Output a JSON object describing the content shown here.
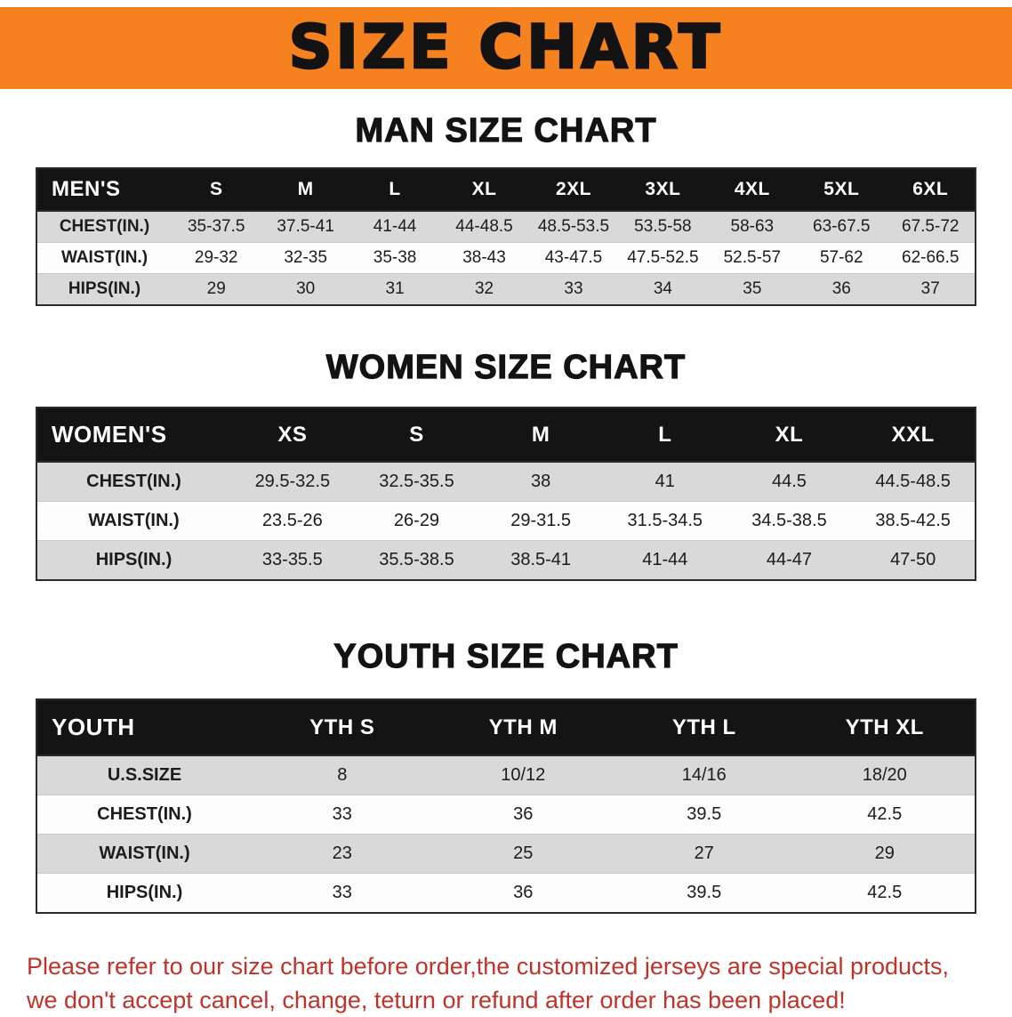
{
  "banner": {
    "title": "SIZE CHART",
    "bg_color": "#F5821F",
    "text_color": "#131313"
  },
  "chart_data": [
    {
      "type": "table",
      "title": "MAN SIZE CHART",
      "columns": [
        "MEN'S",
        "S",
        "M",
        "L",
        "XL",
        "2XL",
        "3XL",
        "4XL",
        "5XL",
        "6XL"
      ],
      "rows": [
        [
          "CHEST(IN.)",
          "35-37.5",
          "37.5-41",
          "41-44",
          "44-48.5",
          "48.5-53.5",
          "53.5-58",
          "58-63",
          "63-67.5",
          "67.5-72"
        ],
        [
          "WAIST(IN.)",
          "29-32",
          "32-35",
          "35-38",
          "38-43",
          "43-47.5",
          "47.5-52.5",
          "52.5-57",
          "57-62",
          "62-66.5"
        ],
        [
          "HIPS(IN.)",
          "29",
          "30",
          "31",
          "32",
          "33",
          "34",
          "35",
          "36",
          "37"
        ]
      ]
    },
    {
      "type": "table",
      "title": "WOMEN SIZE CHART",
      "columns": [
        "WOMEN'S",
        "XS",
        "S",
        "M",
        "L",
        "XL",
        "XXL"
      ],
      "rows": [
        [
          "CHEST(IN.)",
          "29.5-32.5",
          "32.5-35.5",
          "38",
          "41",
          "44.5",
          "44.5-48.5"
        ],
        [
          "WAIST(IN.)",
          "23.5-26",
          "26-29",
          "29-31.5",
          "31.5-34.5",
          "34.5-38.5",
          "38.5-42.5"
        ],
        [
          "HIPS(IN.)",
          "33-35.5",
          "35.5-38.5",
          "38.5-41",
          "41-44",
          "44-47",
          "47-50"
        ]
      ]
    },
    {
      "type": "table",
      "title": "YOUTH SIZE CHART",
      "columns": [
        "YOUTH",
        "YTH S",
        "YTH M",
        "YTH L",
        "YTH XL"
      ],
      "rows": [
        [
          "U.S.SIZE",
          "8",
          "10/12",
          "14/16",
          "18/20"
        ],
        [
          "CHEST(IN.)",
          "33",
          "36",
          "39.5",
          "42.5"
        ],
        [
          "WAIST(IN.)",
          "23",
          "25",
          "27",
          "29"
        ],
        [
          "HIPS(IN.)",
          "33",
          "36",
          "39.5",
          "42.5"
        ]
      ]
    }
  ],
  "disclaimer": {
    "line1": "Please refer to our size chart before order,the customized jerseys are special products,",
    "line2": "we don't accept cancel, change, teturn or refund after order has been placed!",
    "color": "#C1332A"
  }
}
